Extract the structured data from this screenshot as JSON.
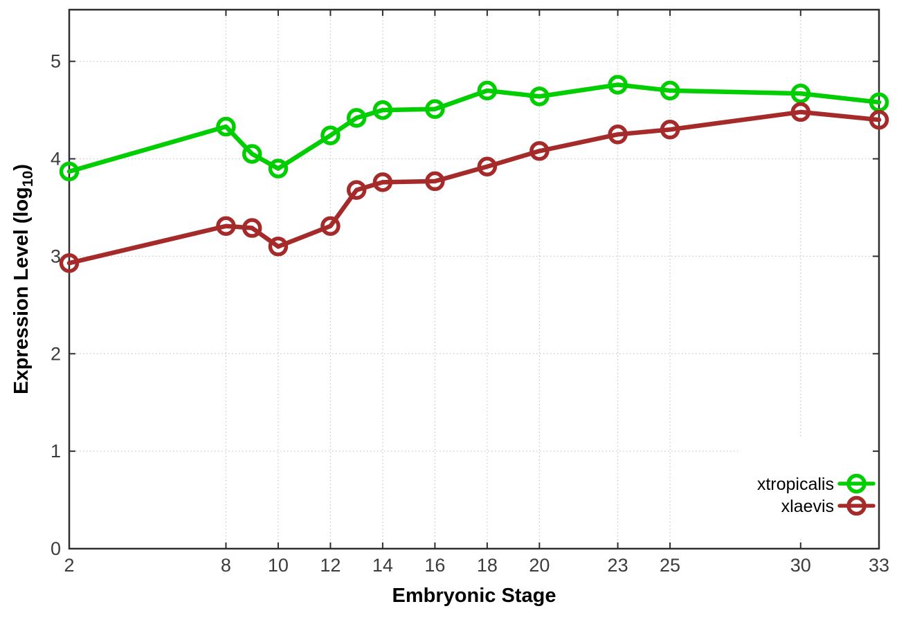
{
  "chart_data": {
    "type": "line",
    "title": "",
    "xlabel": "Embryonic Stage",
    "ylabel": "Expression Level (log10)",
    "ylabel_parts": {
      "main": "Expression Level (log",
      "sub": "10",
      "end": ")"
    },
    "x": [
      2,
      8,
      9,
      10,
      12,
      13,
      14,
      16,
      18,
      20,
      23,
      25,
      30,
      33
    ],
    "xticks": [
      2,
      8,
      10,
      12,
      14,
      16,
      18,
      20,
      23,
      25,
      30,
      33
    ],
    "yticks": [
      0,
      1,
      2,
      3,
      4,
      5
    ],
    "xlim": [
      2,
      33
    ],
    "ylim": [
      0,
      5.53
    ],
    "grid": true,
    "legend_position": "inside-bottom-right",
    "series": [
      {
        "name": "xtropicalis",
        "color": "#00ce00",
        "marker": "open-circle",
        "values": [
          3.87,
          4.33,
          4.05,
          3.9,
          4.24,
          4.42,
          4.5,
          4.51,
          4.7,
          4.64,
          4.76,
          4.7,
          4.67,
          4.58
        ]
      },
      {
        "name": "xlaevis",
        "color": "#a52a2a",
        "marker": "open-circle",
        "values": [
          2.93,
          3.31,
          3.29,
          3.1,
          3.31,
          3.68,
          3.76,
          3.77,
          3.92,
          4.08,
          4.25,
          4.3,
          4.48,
          4.4
        ]
      }
    ]
  },
  "colors": {
    "background": "#ffffff",
    "plot_border": "#2e2e2e",
    "grid": "#c9c9c9",
    "tick_label": "#3c3c3c",
    "axis_title": "#000000",
    "legend_text": "#000000"
  }
}
